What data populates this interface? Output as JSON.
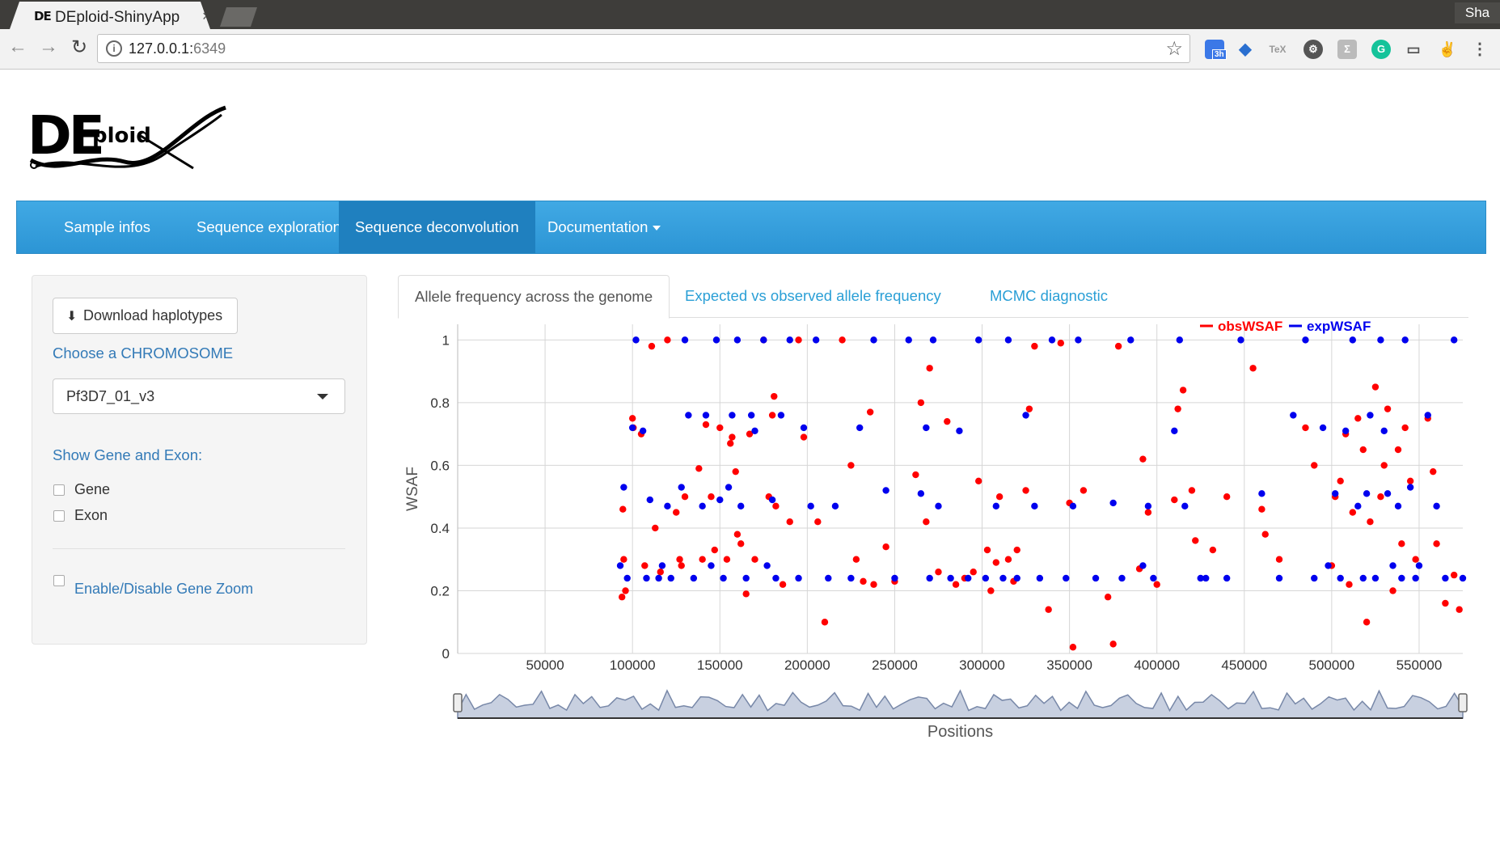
{
  "browser": {
    "tab_title": "DEploid-ShinyApp",
    "tab_favicon": "DE",
    "tab_close": "×",
    "profile": "Sha",
    "url_host": "127.0.0.1:",
    "url_port": "6349",
    "ext_badge": "3h",
    "ext_tex": "TeX"
  },
  "logo": {
    "big": "DE",
    "small": "ploid"
  },
  "navbar": {
    "items": [
      "Sample infos",
      "Sequence exploration",
      "Sequence deconvolution",
      "Documentation"
    ],
    "active": "Sequence deconvolution"
  },
  "sidebar": {
    "download_label": "Download haplotypes",
    "choose_label": "Choose a CHROMOSOME",
    "chromosome_value": "Pf3D7_01_v3",
    "show_label": "Show Gene and Exon:",
    "gene_label": "Gene",
    "exon_label": "Exon",
    "zoom_label": "Enable/Disable Gene Zoom"
  },
  "tabs": {
    "items": [
      "Allele frequency across the genome",
      "Expected vs observed allele frequency",
      "MCMC diagnostic"
    ],
    "active": "Allele frequency across the genome"
  },
  "colors": {
    "obs": "#ff0000",
    "exp": "#0000ee",
    "navbar": "#2c95d5",
    "link": "#337ab7"
  },
  "chart_data": {
    "type": "scatter",
    "title": "",
    "xlabel": "Positions",
    "ylabel": "WSAF",
    "xlim": [
      0,
      575000
    ],
    "ylim": [
      0,
      1.05
    ],
    "xticks": [
      50000,
      100000,
      150000,
      200000,
      250000,
      300000,
      350000,
      400000,
      450000,
      500000,
      550000
    ],
    "yticks": [
      0,
      0.2,
      0.4,
      0.6,
      0.8,
      1
    ],
    "ytick_labels": [
      "0",
      "0.2",
      "0.4",
      "0.6",
      "0.8",
      "1"
    ],
    "grid": true,
    "legend_position": "top-right",
    "series": [
      {
        "name": "obsWSAF",
        "color": "#ff0000",
        "x": [
          94000,
          94500,
          95000,
          96000,
          100000,
          100500,
          105000,
          107000,
          111000,
          113000,
          116000,
          120000,
          125000,
          127000,
          128000,
          130000,
          138000,
          140000,
          142000,
          145000,
          147000,
          150000,
          154000,
          156000,
          157000,
          159000,
          160000,
          162000,
          165000,
          167000,
          170000,
          175000,
          178000,
          180000,
          181000,
          182000,
          186000,
          190000,
          195000,
          198000,
          206000,
          210000,
          220000,
          225000,
          228000,
          232000,
          236000,
          238000,
          245000,
          250000,
          262000,
          265000,
          268000,
          270000,
          275000,
          280000,
          285000,
          290000,
          295000,
          298000,
          303000,
          305000,
          308000,
          310000,
          315000,
          318000,
          320000,
          325000,
          327000,
          330000,
          338000,
          345000,
          350000,
          352000,
          358000,
          372000,
          375000,
          378000,
          390000,
          392000,
          395000,
          400000,
          410000,
          412000,
          415000,
          420000,
          422000,
          432000,
          440000,
          455000,
          460000,
          462000,
          470000,
          485000,
          490000,
          500000,
          502000,
          505000,
          508000,
          510000,
          512000,
          515000,
          518000,
          520000,
          522000,
          525000,
          528000,
          530000,
          532000,
          535000,
          538000,
          540000,
          542000,
          545000,
          548000,
          555000,
          558000,
          560000,
          565000,
          570000,
          573000
        ],
        "y": [
          0.18,
          0.46,
          0.3,
          0.2,
          0.75,
          0.72,
          0.7,
          0.28,
          0.98,
          0.4,
          0.26,
          1.0,
          0.45,
          0.3,
          0.28,
          0.5,
          0.59,
          0.3,
          0.73,
          0.5,
          0.33,
          0.72,
          0.3,
          0.67,
          0.69,
          0.58,
          0.38,
          0.35,
          0.19,
          0.7,
          0.3,
          1.0,
          0.5,
          0.76,
          0.82,
          0.47,
          0.22,
          0.42,
          1.0,
          0.69,
          0.42,
          0.1,
          1.0,
          0.6,
          0.3,
          0.23,
          0.77,
          0.22,
          0.34,
          0.23,
          0.57,
          0.8,
          0.42,
          0.91,
          0.26,
          0.74,
          0.22,
          0.24,
          0.26,
          0.55,
          0.33,
          0.2,
          0.29,
          0.5,
          0.3,
          0.23,
          0.33,
          0.52,
          0.78,
          0.98,
          0.14,
          0.99,
          0.48,
          0.02,
          0.52,
          0.18,
          0.03,
          0.98,
          0.27,
          0.62,
          0.45,
          0.22,
          0.49,
          0.78,
          0.84,
          0.52,
          0.36,
          0.33,
          0.5,
          0.91,
          0.46,
          0.38,
          0.3,
          0.72,
          0.6,
          0.28,
          0.5,
          0.55,
          0.7,
          0.22,
          0.45,
          0.75,
          0.65,
          0.1,
          0.42,
          0.85,
          0.5,
          0.6,
          0.78,
          0.2,
          0.65,
          0.35,
          0.72,
          0.55,
          0.3,
          0.75,
          0.58,
          0.35,
          0.16,
          0.25,
          0.14
        ],
        "r": [
          4,
          5,
          5,
          4,
          5,
          5,
          5,
          4,
          5,
          4,
          4,
          5,
          4,
          4,
          4,
          4,
          4,
          4,
          4,
          4,
          4,
          4,
          4,
          4,
          4,
          4,
          4,
          4,
          4,
          4,
          4,
          4,
          4,
          4,
          4,
          4,
          4,
          4,
          4,
          4,
          4,
          4,
          4,
          4,
          4,
          4,
          4,
          4,
          4,
          4,
          4,
          4,
          4,
          4,
          4,
          4,
          4,
          4,
          4,
          4,
          4,
          4,
          4,
          4,
          4,
          4,
          4,
          4,
          4,
          4,
          4,
          4,
          4,
          4,
          4,
          4,
          4,
          4,
          4,
          4,
          4,
          4,
          4,
          4,
          4,
          4,
          4,
          4,
          4,
          4,
          4,
          4,
          4,
          4,
          4,
          4,
          4,
          4,
          4,
          4,
          4,
          4,
          4,
          4,
          4,
          4,
          4,
          4,
          4,
          4,
          4,
          4,
          4,
          4,
          4,
          4,
          4,
          4,
          4,
          4,
          4
        ]
      },
      {
        "name": "expWSAF",
        "color": "#0000ee",
        "x": [
          93000,
          95000,
          97000,
          100000,
          102000,
          106000,
          108000,
          110000,
          115000,
          117000,
          120000,
          122000,
          128000,
          130000,
          132000,
          135000,
          140000,
          142000,
          145000,
          148000,
          150000,
          152000,
          155000,
          157000,
          160000,
          162000,
          165000,
          168000,
          170000,
          175000,
          177000,
          180000,
          182000,
          185000,
          190000,
          195000,
          198000,
          202000,
          205000,
          212000,
          216000,
          225000,
          230000,
          238000,
          245000,
          250000,
          258000,
          265000,
          268000,
          270000,
          272000,
          275000,
          282000,
          287000,
          292000,
          298000,
          302000,
          308000,
          312000,
          315000,
          320000,
          325000,
          330000,
          333000,
          340000,
          348000,
          352000,
          355000,
          365000,
          375000,
          380000,
          385000,
          392000,
          395000,
          398000,
          410000,
          413000,
          416000,
          425000,
          428000,
          440000,
          448000,
          460000,
          470000,
          478000,
          485000,
          490000,
          495000,
          498000,
          502000,
          505000,
          508000,
          512000,
          515000,
          518000,
          520000,
          522000,
          525000,
          528000,
          530000,
          532000,
          535000,
          538000,
          540000,
          542000,
          545000,
          548000,
          550000,
          555000,
          560000,
          565000,
          570000,
          575000
        ],
        "y": [
          0.28,
          0.53,
          0.24,
          0.72,
          1.0,
          0.71,
          0.24,
          0.49,
          0.24,
          0.28,
          0.47,
          0.24,
          0.53,
          1.0,
          0.76,
          0.24,
          0.47,
          0.76,
          0.28,
          1.0,
          0.49,
          0.24,
          0.53,
          0.76,
          1.0,
          0.47,
          0.24,
          0.76,
          0.71,
          1.0,
          0.28,
          0.49,
          0.24,
          0.76,
          1.0,
          0.24,
          0.72,
          0.47,
          1.0,
          0.24,
          0.47,
          0.24,
          0.72,
          1.0,
          0.52,
          0.24,
          1.0,
          0.51,
          0.72,
          0.24,
          1.0,
          0.47,
          0.24,
          0.71,
          0.24,
          1.0,
          0.24,
          0.47,
          0.24,
          1.0,
          0.24,
          0.76,
          0.47,
          0.24,
          1.0,
          0.24,
          0.47,
          1.0,
          0.24,
          0.48,
          0.24,
          1.0,
          0.28,
          0.47,
          0.24,
          0.71,
          1.0,
          0.47,
          0.24,
          0.24,
          0.24,
          1.0,
          0.51,
          0.24,
          0.76,
          1.0,
          0.24,
          0.72,
          0.28,
          0.51,
          0.24,
          0.71,
          1.0,
          0.47,
          0.24,
          0.51,
          0.76,
          0.24,
          1.0,
          0.71,
          0.51,
          0.28,
          0.47,
          0.24,
          1.0,
          0.53,
          0.24,
          0.28,
          0.76,
          0.47,
          0.24,
          1.0,
          0.24
        ]
      }
    ]
  }
}
